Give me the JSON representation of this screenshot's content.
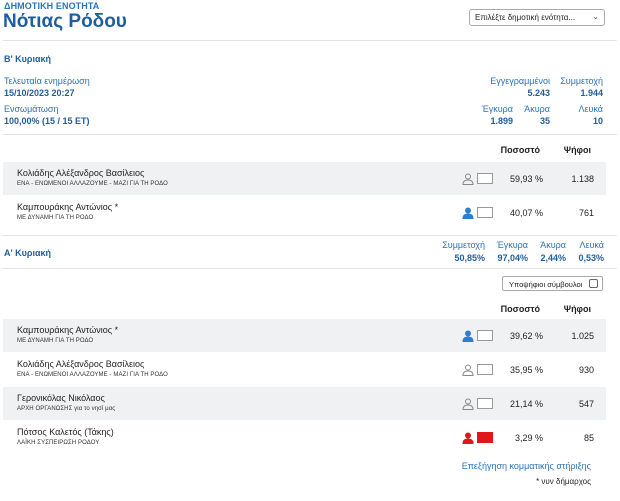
{
  "header": {
    "kicker": "ΔΗΜΟΤΙΚΗ ΕΝΟΤΗΤΑ",
    "title": "Νότιας Ρόδου",
    "select_placeholder": "Επιλέξτε δημοτική ενότητα..."
  },
  "round_b": {
    "title": "Β' Κυριακή",
    "last_update_label": "Τελευταία ενημέρωση",
    "last_update_value": "15/10/2023 20:27",
    "integration_label": "Ενσωμάτωση",
    "integration_value": "100,00% (15 / 15 ΕΤ)",
    "registered_label": "Εγγεγραμμένοι",
    "registered_value": "5.243",
    "turnout_label": "Συμμετοχή",
    "turnout_value": "1.944",
    "valid_label": "Έγκυρα",
    "valid_value": "1.899",
    "invalid_label": "Άκυρα",
    "invalid_value": "35",
    "blank_label": "Λευκά",
    "blank_value": "10",
    "col_percent": "Ποσοστό",
    "col_votes": "Ψήφοι",
    "candidates": [
      {
        "name": "Κολιάδης Αλέξανδρος Βασίλειος",
        "party": "ΕΝΑ - ΕΝΩΜΕΝΟΙ ΑΛΛΑΖΟΥΜΕ - ΜΑΖΙ ΓΙΑ ΤΗ ΡΟΔΟ",
        "percent": "59,93 %",
        "votes": "1.138",
        "color": "#ffffff",
        "icon_color": "#888888"
      },
      {
        "name": "Καμπουράκης Αντώνιος *",
        "party": "ΜΕ ΔΥΝΑΜΗ ΓΙΑ ΤΗ ΡΟΔΟ",
        "percent": "40,07 %",
        "votes": "761",
        "color": "#ffffff",
        "icon_color": "#2b7fd0"
      }
    ]
  },
  "round_a": {
    "title": "Α' Κυριακή",
    "turnout_label": "Συμμετοχή",
    "turnout_value": "50,85%",
    "valid_label": "Έγκυρα",
    "valid_value": "97,04%",
    "invalid_label": "Άκυρα",
    "invalid_value": "2,44%",
    "blank_label": "Λευκά",
    "blank_value": "0,53%",
    "councillors_label": "Υποψήφιοι σύμβουλοι",
    "col_percent": "Ποσοστό",
    "col_votes": "Ψήφοι",
    "candidates": [
      {
        "name": "Καμπουράκης Αντώνιος *",
        "party": "ΜΕ ΔΥΝΑΜΗ ΓΙΑ ΤΗ ΡΟΔΟ",
        "percent": "39,62 %",
        "votes": "1.025",
        "color": "#ffffff",
        "icon_color": "#2b7fd0"
      },
      {
        "name": "Κολιάδης Αλέξανδρος Βασίλειος",
        "party": "ΕΝΑ - ΕΝΩΜΕΝΟΙ ΑΛΛΑΖΟΥΜΕ - ΜΑΖΙ ΓΙΑ ΤΗ ΡΟΔΟ",
        "percent": "35,95 %",
        "votes": "930",
        "color": "#ffffff",
        "icon_color": "#888888"
      },
      {
        "name": "Γερονικόλας Νικόλαος",
        "party": "ΑΡΧΗ ΟΡΓΑΝΩΣΗΣ για το νησί μας",
        "percent": "21,14 %",
        "votes": "547",
        "color": "#ffffff",
        "icon_color": "#888888"
      },
      {
        "name": "Πότσος Καλετός (Τάκης)",
        "party": "ΛΑΪΚΗ ΣΥΣΠΕΙΡΩΣΗ ΡΟΔΟΥ",
        "percent": "3,29 %",
        "votes": "85",
        "color": "#e0161a",
        "icon_color": "#e0161a"
      }
    ],
    "party_support_link": "Επεξήγηση κομματικής στήριξης",
    "footnote": "* νυν δήμαρχος"
  }
}
